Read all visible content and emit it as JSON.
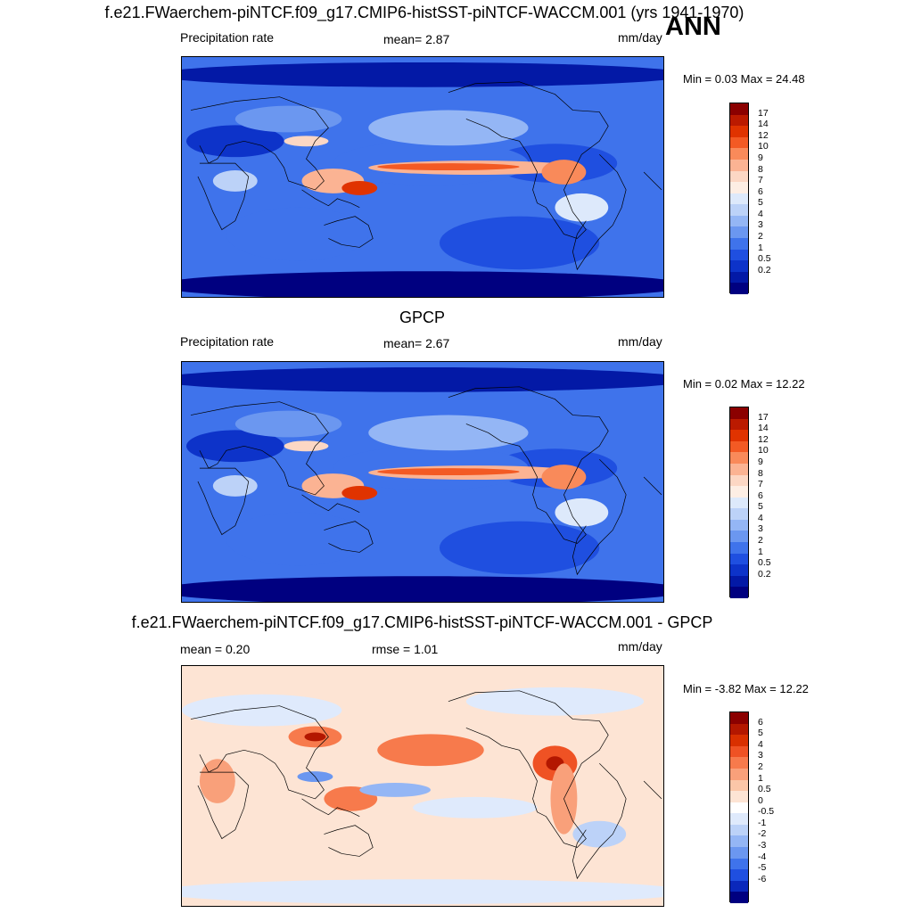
{
  "main_title": "f.e21.FWaerchem-piNTCF.f09_g17.CMIP6-histSST-piNTCF-WACCM.001 (yrs 1941-1970)",
  "season": "ANN",
  "panels": [
    {
      "title": "",
      "left_label": "Precipitation rate",
      "center_label": "mean=   2.87",
      "right_label": "mm/day",
      "minmax": "Min =   0.03 Max =  24.48",
      "kind": "abs",
      "colorbar": {
        "colors": [
          "#8b0000",
          "#bb1a00",
          "#e03300",
          "#f35a24",
          "#f98a5a",
          "#fbb393",
          "#fcd7c4",
          "#fdeee4",
          "#dde9fb",
          "#bcd2f8",
          "#94b6f5",
          "#6b97f0",
          "#3f73eb",
          "#1f4fe0",
          "#0d33c9",
          "#0319a6",
          "#000080"
        ],
        "labels": [
          "17",
          "14",
          "12",
          "10",
          "9",
          "8",
          "7",
          "6",
          "5",
          "4",
          "3",
          "2",
          "1",
          "0.5",
          "0.2"
        ]
      }
    },
    {
      "title": "GPCP",
      "left_label": "Precipitation rate",
      "center_label": "mean=   2.67",
      "right_label": "mm/day",
      "minmax": "Min =   0.02 Max =  12.22",
      "kind": "abs",
      "colorbar": {
        "colors": [
          "#8b0000",
          "#bb1a00",
          "#e03300",
          "#f35a24",
          "#f98a5a",
          "#fbb393",
          "#fcd7c4",
          "#fdeee4",
          "#dde9fb",
          "#bcd2f8",
          "#94b6f5",
          "#6b97f0",
          "#3f73eb",
          "#1f4fe0",
          "#0d33c9",
          "#0319a6",
          "#000080"
        ],
        "labels": [
          "17",
          "14",
          "12",
          "10",
          "9",
          "8",
          "7",
          "6",
          "5",
          "4",
          "3",
          "2",
          "1",
          "0.5",
          "0.2"
        ]
      }
    },
    {
      "title": "f.e21.FWaerchem-piNTCF.f09_g17.CMIP6-histSST-piNTCF-WACCM.001 - GPCP",
      "left_label": "mean =   0.20",
      "center_label": "rmse =   1.01",
      "right_label": "mm/day",
      "minmax": "Min =  -3.82 Max =  12.22",
      "kind": "diff",
      "colorbar": {
        "colors": [
          "#8b0000",
          "#b31700",
          "#d93000",
          "#ef5224",
          "#f77a4c",
          "#f9a07a",
          "#fbc6a8",
          "#fde4d4",
          "#ffffff",
          "#dfeafc",
          "#bcd2f8",
          "#94b6f5",
          "#6b97f0",
          "#3f73eb",
          "#1f4fe0",
          "#0a28bb",
          "#000080"
        ],
        "labels": [
          "6",
          "5",
          "4",
          "3",
          "2",
          "1",
          "0.5",
          "0",
          "-0.5",
          "-1",
          "-2",
          "-3",
          "-4",
          "-5",
          "-6"
        ]
      }
    }
  ]
}
